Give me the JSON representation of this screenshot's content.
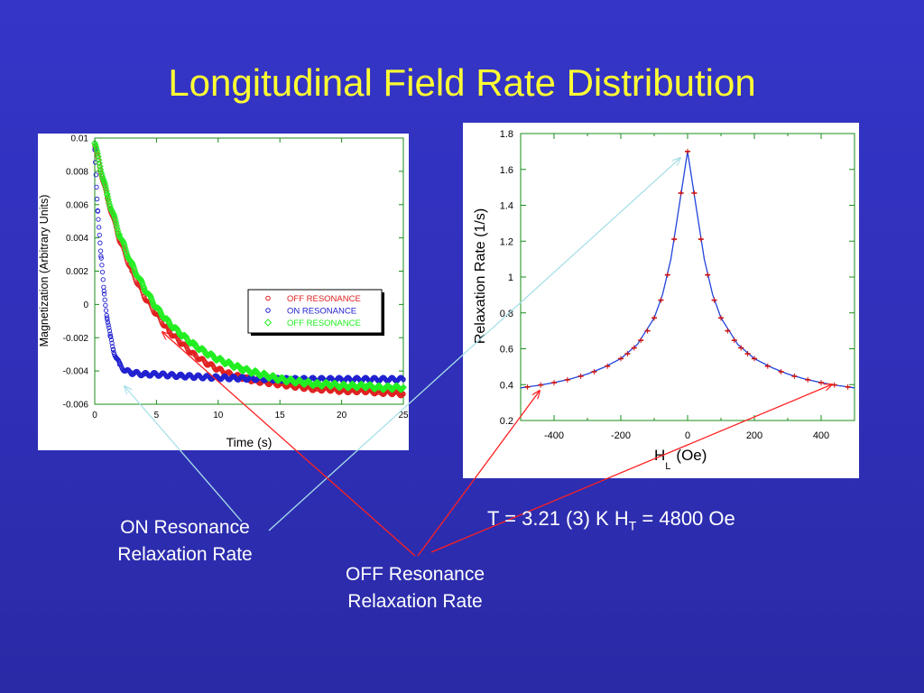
{
  "slide": {
    "title": "Longitudinal Field Rate Distribution",
    "on_caption": [
      "ON Resonance",
      "Relaxation Rate"
    ],
    "off_caption": [
      "OFF Resonance",
      "Relaxation Rate"
    ],
    "param_text": {
      "prefix": "T = 3.21 (3) K H",
      "subscript": "T",
      "suffix": " = 4800 Oe"
    },
    "colors": {
      "background": "#3232c0",
      "title": "#ffff33",
      "on_arrow": "#a8e0e8",
      "off_arrow": "#ff2020"
    }
  },
  "chart_data": [
    {
      "type": "scatter",
      "xlabel": "Time (s)",
      "ylabel": "Magnetization (Arbitrary Units)",
      "xlim": [
        0,
        25
      ],
      "ylim": [
        -0.006,
        0.01
      ],
      "x_ticks": [
        0,
        5,
        10,
        15,
        20,
        25
      ],
      "y_ticks": [
        -0.006,
        -0.004,
        -0.002,
        0,
        0.002,
        0.004,
        0.006,
        0.008,
        0.01
      ],
      "y_tick_labels": [
        "-0.006",
        "-0.004",
        "-0.002",
        "0",
        "0.002",
        "0.004",
        "0.006",
        "0.008",
        "0.01"
      ],
      "legend_position": "right",
      "legend": [
        {
          "marker": "o",
          "name": "OFF RESONANCE",
          "color": "#e02020"
        },
        {
          "marker": "o",
          "name": "ON RESONANCE",
          "color": "#2020d0"
        },
        {
          "marker": "◇",
          "name": "OFF RESONANCE",
          "color": "#22ee22"
        }
      ],
      "series": [
        {
          "name": "OFF RESONANCE",
          "color": "#e02020",
          "x": [
            0,
            1,
            2,
            3,
            4,
            5,
            6,
            7,
            8,
            9,
            10,
            11,
            12,
            13,
            14,
            15,
            16,
            17,
            18,
            19,
            20,
            21,
            22,
            23,
            24,
            25
          ],
          "y": [
            0.0095,
            0.0064,
            0.0039,
            0.002,
            0.0005,
            -0.0006,
            -0.0016,
            -0.0023,
            -0.003,
            -0.0035,
            -0.0039,
            -0.0042,
            -0.0044,
            -0.0046,
            -0.0047,
            -0.0048,
            -0.0049,
            -0.005,
            -0.0051,
            -0.0051,
            -0.0052,
            -0.0052,
            -0.0052,
            -0.0053,
            -0.0053,
            -0.0054
          ]
        },
        {
          "name": "ON RESONANCE",
          "color": "#2020d0",
          "x": [
            0,
            0.25,
            0.5,
            0.75,
            1,
            1.25,
            1.5,
            1.75,
            2,
            2.5,
            3,
            4,
            5,
            7,
            10,
            15,
            20,
            25
          ],
          "y": [
            0.0093,
            0.0056,
            0.0029,
            0.0008,
            -0.0008,
            -0.0019,
            -0.0027,
            -0.0032,
            -0.0036,
            -0.004,
            -0.0041,
            -0.0042,
            -0.0042,
            -0.0043,
            -0.0044,
            -0.0045,
            -0.0045,
            -0.0045
          ]
        },
        {
          "name": "OFF RESONANCE",
          "color": "#22ee22",
          "x": [
            0,
            1,
            2,
            3,
            4,
            5,
            6,
            7,
            8,
            9,
            10,
            11,
            12,
            13,
            14,
            15,
            16,
            17,
            18,
            19,
            20,
            21,
            22,
            23,
            24,
            25
          ],
          "y": [
            0.0097,
            0.0066,
            0.0042,
            0.0024,
            0.001,
            -0.0002,
            -0.0011,
            -0.0018,
            -0.0024,
            -0.0029,
            -0.0033,
            -0.0036,
            -0.0039,
            -0.0041,
            -0.0043,
            -0.0045,
            -0.0046,
            -0.0047,
            -0.0048,
            -0.0048,
            -0.0049,
            -0.0049,
            -0.0049,
            -0.005,
            -0.005,
            -0.005
          ]
        }
      ]
    },
    {
      "type": "scatter",
      "xlabel": "H",
      "xlabel_sub": "L",
      "xlabel_suffix": "(Oe)",
      "ylabel": "Relaxation Rate (1/s)",
      "xlim": [
        -500,
        500
      ],
      "ylim": [
        0.2,
        1.8
      ],
      "x_ticks": [
        -400,
        -200,
        0,
        200,
        400
      ],
      "y_ticks": [
        0.2,
        0.4,
        0.6,
        0.8,
        1,
        1.2,
        1.4,
        1.6,
        1.8
      ],
      "y_tick_labels": [
        "0.2",
        "0.4",
        "0.6",
        "0.8",
        "1",
        "1.2",
        "1.4",
        "1.6",
        "1.8"
      ],
      "data_points": {
        "color": "#cc1010",
        "x": [
          -480,
          -440,
          -400,
          -360,
          -320,
          -280,
          -240,
          -200,
          -180,
          -160,
          -140,
          -120,
          -100,
          -80,
          -60,
          -40,
          -20,
          0,
          20,
          40,
          60,
          80,
          100,
          120,
          140,
          160,
          180,
          200,
          240,
          280,
          320,
          360,
          400,
          440,
          480
        ],
        "y": [
          0.387,
          0.398,
          0.411,
          0.427,
          0.447,
          0.472,
          0.503,
          0.545,
          0.572,
          0.605,
          0.647,
          0.7,
          0.772,
          0.871,
          1.012,
          1.211,
          1.468,
          1.7,
          1.468,
          1.211,
          1.012,
          0.871,
          0.772,
          0.7,
          0.647,
          0.605,
          0.572,
          0.545,
          0.503,
          0.472,
          0.447,
          0.427,
          0.411,
          0.398,
          0.387
        ]
      },
      "fit_curve": {
        "color": "#2244dd",
        "x": [
          -500,
          -450,
          -400,
          -350,
          -300,
          -250,
          -200,
          -150,
          -100,
          -75,
          -50,
          -25,
          0,
          25,
          50,
          75,
          100,
          150,
          200,
          250,
          300,
          350,
          400,
          450,
          500
        ],
        "y": [
          0.382,
          0.395,
          0.411,
          0.432,
          0.459,
          0.497,
          0.545,
          0.625,
          0.772,
          0.902,
          1.1,
          1.398,
          1.7,
          1.398,
          1.1,
          0.902,
          0.772,
          0.625,
          0.545,
          0.497,
          0.459,
          0.432,
          0.411,
          0.395,
          0.382
        ]
      }
    }
  ]
}
